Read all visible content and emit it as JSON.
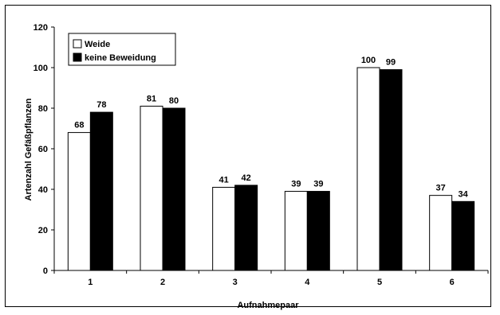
{
  "chart_data": {
    "type": "bar",
    "categories": [
      "1",
      "2",
      "3",
      "4",
      "5",
      "6"
    ],
    "series": [
      {
        "name": "Weide",
        "values": [
          68,
          81,
          41,
          39,
          100,
          37
        ],
        "fill": "#ffffff"
      },
      {
        "name": "keine Beweidung",
        "values": [
          78,
          80,
          42,
          39,
          99,
          34
        ],
        "fill": "#000000"
      }
    ],
    "xlabel": "Aufnahmepaar",
    "ylabel": "Artenzahl Gefäßpflanzen",
    "ylim": [
      0,
      120
    ],
    "yticks": [
      "0",
      "20",
      "40",
      "60",
      "80",
      "100",
      "120"
    ],
    "grid": false,
    "legend_position": "top-left"
  }
}
